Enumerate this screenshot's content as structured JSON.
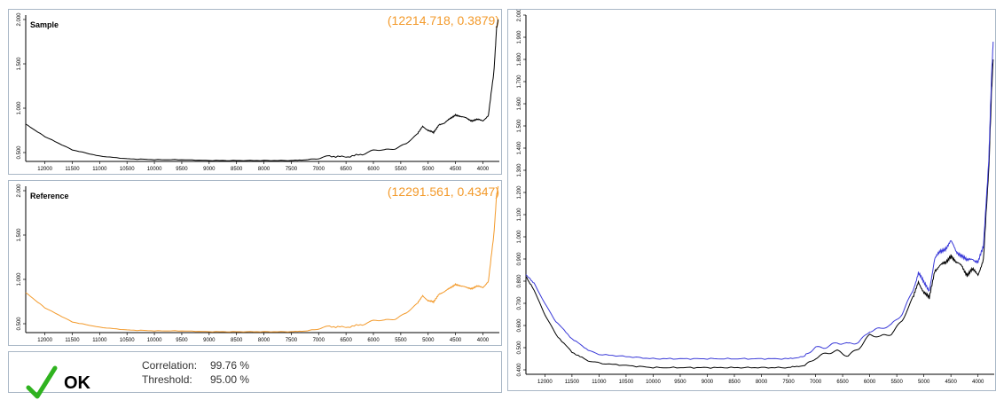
{
  "sample_panel": {
    "title": "Sample",
    "coordinate_readout": "(12214.718, 0.3879)",
    "x_ticks": [
      "12000",
      "11500",
      "11000",
      "10500",
      "10000",
      "9500",
      "9000",
      "8500",
      "8000",
      "7500",
      "7000",
      "6500",
      "6000",
      "5500",
      "5000",
      "4500",
      "4000"
    ],
    "y_ticks": [
      "0.500",
      "1.000",
      "1.500",
      "2.000"
    ],
    "line_color": "#000000"
  },
  "reference_panel": {
    "title": "Reference",
    "coordinate_readout": "(12291.561, 0.4347)",
    "x_ticks": [
      "12000",
      "11500",
      "11000",
      "10500",
      "10000",
      "9500",
      "9000",
      "8500",
      "8000",
      "7500",
      "7000",
      "6500",
      "6000",
      "5500",
      "5000",
      "4500",
      "4000"
    ],
    "y_ticks": [
      "0.500",
      "1.000",
      "1.500",
      "2.000"
    ],
    "line_color": "#f39a2b"
  },
  "overlay_panel": {
    "x_ticks": [
      "12000",
      "11500",
      "11000",
      "10500",
      "10000",
      "9500",
      "9000",
      "8500",
      "8000",
      "7500",
      "7000",
      "6500",
      "6000",
      "5500",
      "5000",
      "4500",
      "4000"
    ],
    "y_ticks": [
      "0.400",
      "0.500",
      "0.600",
      "0.700",
      "0.800",
      "0.900",
      "1.000",
      "1.100",
      "1.200",
      "1.300",
      "1.400",
      "1.500",
      "1.600",
      "1.700",
      "1.800",
      "1.900",
      "2.000"
    ],
    "series_colors": [
      "#000000",
      "#3a3ad8"
    ]
  },
  "result": {
    "correlation_label": "Correlation:",
    "correlation_value": "99.76 %",
    "threshold_label": "Threshold:",
    "threshold_value": "95.00 %",
    "status": "OK",
    "status_color": "#2fb31f"
  },
  "chart_data": [
    {
      "type": "line",
      "title": "Sample",
      "xlim": [
        12350,
        3700
      ],
      "ylim": [
        0.4,
        2.05
      ],
      "x": [
        12350,
        12000,
        11500,
        11000,
        10500,
        10000,
        9500,
        9000,
        8500,
        8000,
        7500,
        7200,
        7000,
        6800,
        6500,
        6200,
        6000,
        5800,
        5600,
        5400,
        5200,
        5100,
        5000,
        4900,
        4800,
        4700,
        4600,
        4500,
        4400,
        4300,
        4200,
        4100,
        4000,
        3900,
        3800,
        3750,
        3720
      ],
      "series": [
        {
          "values": [
            0.82,
            0.68,
            0.53,
            0.46,
            0.43,
            0.42,
            0.42,
            0.41,
            0.41,
            0.41,
            0.41,
            0.42,
            0.44,
            0.46,
            0.45,
            0.48,
            0.52,
            0.53,
            0.55,
            0.6,
            0.7,
            0.8,
            0.75,
            0.72,
            0.82,
            0.83,
            0.88,
            0.93,
            0.9,
            0.89,
            0.86,
            0.87,
            0.86,
            0.92,
            1.4,
            1.9,
            2.0
          ]
        }
      ]
    },
    {
      "type": "line",
      "title": "Reference",
      "xlim": [
        12350,
        3700
      ],
      "ylim": [
        0.4,
        2.05
      ],
      "x": [
        12350,
        12000,
        11500,
        11000,
        10500,
        10000,
        9500,
        9000,
        8500,
        8000,
        7500,
        7200,
        7000,
        6800,
        6500,
        6200,
        6000,
        5800,
        5600,
        5400,
        5200,
        5100,
        5000,
        4900,
        4800,
        4700,
        4600,
        4500,
        4400,
        4300,
        4200,
        4100,
        4000,
        3900,
        3800,
        3750,
        3720
      ],
      "series": [
        {
          "values": [
            0.85,
            0.68,
            0.52,
            0.46,
            0.43,
            0.42,
            0.42,
            0.41,
            0.41,
            0.41,
            0.41,
            0.42,
            0.45,
            0.47,
            0.46,
            0.49,
            0.53,
            0.54,
            0.56,
            0.62,
            0.72,
            0.82,
            0.76,
            0.74,
            0.84,
            0.86,
            0.9,
            0.95,
            0.92,
            0.91,
            0.9,
            0.92,
            0.91,
            0.98,
            1.5,
            1.95,
            2.05
          ]
        }
      ]
    },
    {
      "type": "line",
      "xlim": [
        12350,
        3700
      ],
      "ylim": [
        0.38,
        2.0
      ],
      "x": [
        12350,
        12200,
        12000,
        11800,
        11500,
        11200,
        11000,
        10500,
        10000,
        9500,
        9000,
        8500,
        8000,
        7500,
        7200,
        7000,
        6800,
        6600,
        6400,
        6200,
        6000,
        5800,
        5600,
        5400,
        5200,
        5100,
        5000,
        4900,
        4800,
        4700,
        4600,
        4500,
        4400,
        4300,
        4200,
        4100,
        4000,
        3900,
        3800,
        3750,
        3720
      ],
      "series": [
        {
          "values": [
            0.82,
            0.76,
            0.65,
            0.56,
            0.48,
            0.44,
            0.43,
            0.42,
            0.41,
            0.41,
            0.41,
            0.41,
            0.41,
            0.41,
            0.42,
            0.46,
            0.47,
            0.48,
            0.47,
            0.5,
            0.55,
            0.55,
            0.57,
            0.62,
            0.72,
            0.8,
            0.75,
            0.72,
            0.85,
            0.87,
            0.88,
            0.92,
            0.88,
            0.87,
            0.83,
            0.85,
            0.83,
            0.9,
            1.3,
            1.65,
            1.8
          ]
        },
        {
          "values": [
            0.83,
            0.79,
            0.7,
            0.62,
            0.54,
            0.49,
            0.47,
            0.46,
            0.45,
            0.45,
            0.45,
            0.45,
            0.45,
            0.45,
            0.46,
            0.5,
            0.51,
            0.52,
            0.51,
            0.53,
            0.58,
            0.58,
            0.6,
            0.66,
            0.76,
            0.84,
            0.79,
            0.76,
            0.9,
            0.93,
            0.95,
            0.98,
            0.93,
            0.92,
            0.89,
            0.9,
            0.89,
            0.95,
            1.35,
            1.72,
            1.88
          ]
        }
      ]
    }
  ]
}
